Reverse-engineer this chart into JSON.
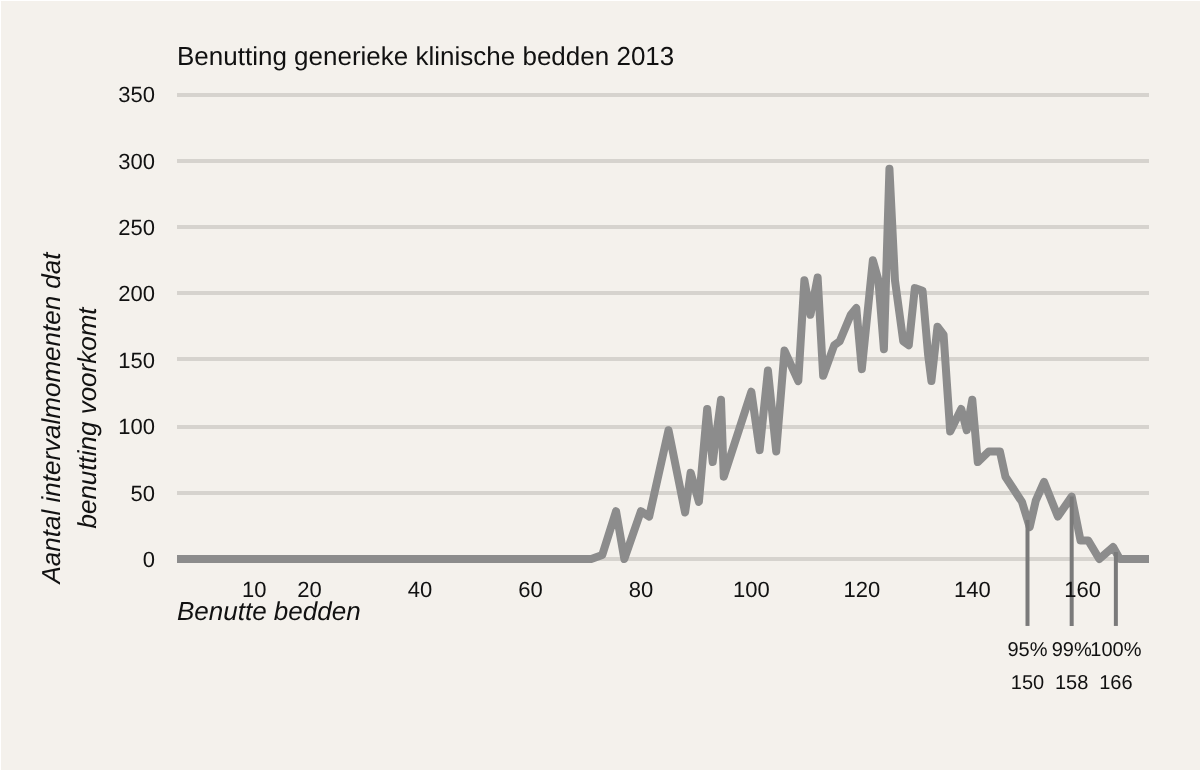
{
  "chart_data": {
    "type": "line",
    "title": "Benutting generieke klinische bedden 2013",
    "xlabel": "Benutte bedden",
    "ylabel": "Aantal intervalmomenten dat benutting voorkomt",
    "series": [
      {
        "color": "#8c8c8c",
        "x": [
          -4,
          71,
          73,
          75.5,
          77,
          80,
          81.5,
          85,
          88,
          89,
          90.5,
          92,
          93,
          94.5,
          95,
          100,
          101.5,
          103,
          104.5,
          106,
          108.5,
          109.6,
          110.7,
          112,
          113,
          115,
          116,
          118,
          119,
          120,
          122,
          123,
          124,
          125,
          126,
          127.5,
          128.5,
          129.6,
          131,
          132,
          132.6,
          133.7,
          134.8,
          136,
          138,
          139,
          140,
          141,
          143,
          145,
          146,
          149,
          150.4,
          151.5,
          153,
          155.5,
          158,
          159.6,
          161,
          163,
          165.5,
          166.7,
          172
        ],
        "values": [
          0,
          0,
          3,
          36,
          0,
          36,
          32,
          97,
          35,
          65,
          43,
          113,
          73,
          120,
          62,
          126,
          82,
          142,
          81,
          157,
          134,
          210,
          184,
          212,
          138,
          161,
          164,
          184,
          189,
          143,
          225,
          210,
          158,
          294,
          210,
          164,
          161,
          204,
          202,
          154,
          134,
          175,
          169,
          96,
          113,
          97,
          120,
          73,
          81,
          81,
          62,
          43,
          24,
          44,
          58,
          32,
          47,
          14,
          14,
          0,
          9,
          0,
          0
        ]
      }
    ],
    "xlim": [
      -4,
      172
    ],
    "ylim": [
      0,
      360
    ],
    "xticks": [
      10,
      20,
      40,
      60,
      80,
      100,
      120,
      140,
      160
    ],
    "yticks": [
      0,
      50,
      100,
      150,
      200,
      250,
      300,
      350
    ],
    "grid": "y",
    "marker": "none",
    "line_style": "solid",
    "ref_lines": [
      {
        "axis": "x",
        "value": 150,
        "label": "95%\n150",
        "color": "#7a7a7a"
      },
      {
        "axis": "x",
        "value": 158,
        "label": "99%\n158",
        "color": "#7a7a7a"
      },
      {
        "axis": "x",
        "value": 166,
        "label": "100%\n166",
        "color": "#7a7a7a"
      }
    ]
  }
}
